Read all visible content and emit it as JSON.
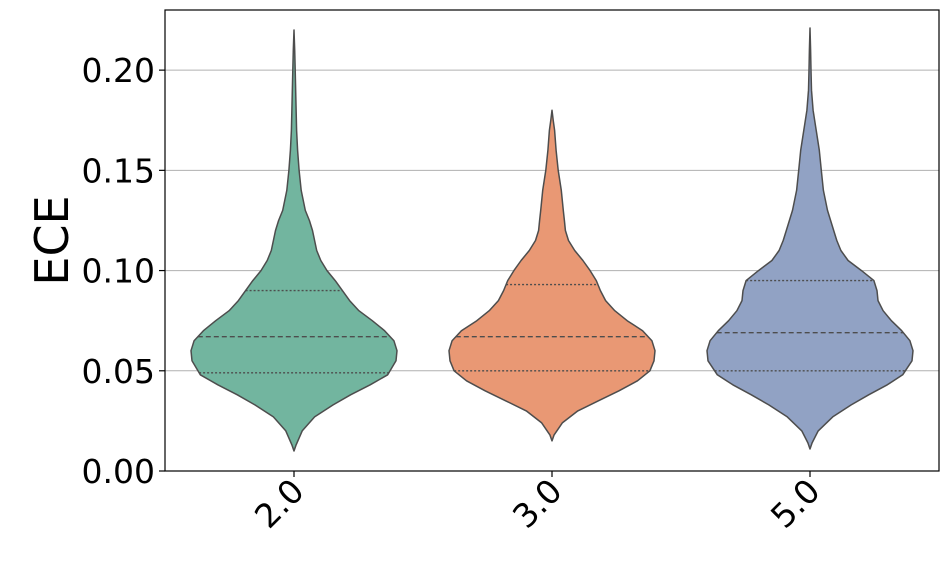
{
  "chart_data": {
    "type": "violin",
    "title": "",
    "xlabel": "",
    "ylabel": "ECE",
    "ylim": [
      0.0,
      0.23
    ],
    "yticks": [
      "0.00",
      "0.05",
      "0.10",
      "0.15",
      "0.20"
    ],
    "categories": [
      "2.0",
      "3.0",
      "5.0"
    ],
    "grid": "y",
    "violins": [
      {
        "category": "2.0",
        "color": "#72b59f",
        "min": 0.01,
        "max": 0.22,
        "quartiles": [
          0.049,
          0.067,
          0.09
        ],
        "profile": [
          [
            0.01,
            0.0
          ],
          [
            0.013,
            0.02
          ],
          [
            0.02,
            0.08
          ],
          [
            0.027,
            0.2
          ],
          [
            0.033,
            0.38
          ],
          [
            0.038,
            0.55
          ],
          [
            0.043,
            0.74
          ],
          [
            0.048,
            0.91
          ],
          [
            0.055,
            0.99
          ],
          [
            0.06,
            1.0
          ],
          [
            0.065,
            0.97
          ],
          [
            0.07,
            0.88
          ],
          [
            0.075,
            0.76
          ],
          [
            0.08,
            0.63
          ],
          [
            0.085,
            0.54
          ],
          [
            0.09,
            0.47
          ],
          [
            0.095,
            0.4
          ],
          [
            0.1,
            0.32
          ],
          [
            0.105,
            0.26
          ],
          [
            0.11,
            0.22
          ],
          [
            0.115,
            0.2
          ],
          [
            0.12,
            0.18
          ],
          [
            0.125,
            0.15
          ],
          [
            0.13,
            0.11
          ],
          [
            0.14,
            0.07
          ],
          [
            0.15,
            0.05
          ],
          [
            0.16,
            0.035
          ],
          [
            0.17,
            0.025
          ],
          [
            0.185,
            0.018
          ],
          [
            0.2,
            0.012
          ],
          [
            0.21,
            0.007
          ],
          [
            0.22,
            0.0
          ]
        ]
      },
      {
        "category": "3.0",
        "color": "#e99874",
        "min": 0.015,
        "max": 0.18,
        "quartiles": [
          0.05,
          0.067,
          0.093
        ],
        "profile": [
          [
            0.015,
            0.0
          ],
          [
            0.018,
            0.02
          ],
          [
            0.024,
            0.1
          ],
          [
            0.03,
            0.25
          ],
          [
            0.035,
            0.45
          ],
          [
            0.04,
            0.65
          ],
          [
            0.045,
            0.83
          ],
          [
            0.05,
            0.95
          ],
          [
            0.055,
            0.99
          ],
          [
            0.06,
            1.0
          ],
          [
            0.065,
            0.97
          ],
          [
            0.07,
            0.88
          ],
          [
            0.075,
            0.73
          ],
          [
            0.08,
            0.61
          ],
          [
            0.085,
            0.52
          ],
          [
            0.09,
            0.47
          ],
          [
            0.095,
            0.43
          ],
          [
            0.1,
            0.37
          ],
          [
            0.105,
            0.3
          ],
          [
            0.11,
            0.22
          ],
          [
            0.115,
            0.16
          ],
          [
            0.12,
            0.13
          ],
          [
            0.125,
            0.12
          ],
          [
            0.13,
            0.11
          ],
          [
            0.135,
            0.1
          ],
          [
            0.14,
            0.09
          ],
          [
            0.15,
            0.06
          ],
          [
            0.16,
            0.04
          ],
          [
            0.17,
            0.025
          ],
          [
            0.175,
            0.012
          ],
          [
            0.18,
            0.0
          ]
        ]
      },
      {
        "category": "5.0",
        "color": "#91a2c4",
        "min": 0.011,
        "max": 0.221,
        "quartiles": [
          0.05,
          0.069,
          0.095
        ],
        "profile": [
          [
            0.011,
            0.0
          ],
          [
            0.014,
            0.02
          ],
          [
            0.02,
            0.08
          ],
          [
            0.027,
            0.22
          ],
          [
            0.033,
            0.4
          ],
          [
            0.038,
            0.57
          ],
          [
            0.043,
            0.75
          ],
          [
            0.048,
            0.9
          ],
          [
            0.055,
            0.99
          ],
          [
            0.06,
            1.0
          ],
          [
            0.065,
            0.97
          ],
          [
            0.07,
            0.89
          ],
          [
            0.075,
            0.79
          ],
          [
            0.08,
            0.71
          ],
          [
            0.085,
            0.66
          ],
          [
            0.09,
            0.65
          ],
          [
            0.095,
            0.62
          ],
          [
            0.1,
            0.5
          ],
          [
            0.105,
            0.37
          ],
          [
            0.11,
            0.3
          ],
          [
            0.115,
            0.26
          ],
          [
            0.12,
            0.23
          ],
          [
            0.13,
            0.17
          ],
          [
            0.14,
            0.13
          ],
          [
            0.15,
            0.11
          ],
          [
            0.16,
            0.09
          ],
          [
            0.17,
            0.06
          ],
          [
            0.18,
            0.03
          ],
          [
            0.19,
            0.015
          ],
          [
            0.2,
            0.01
          ],
          [
            0.21,
            0.006
          ],
          [
            0.221,
            0.0
          ]
        ]
      }
    ]
  }
}
